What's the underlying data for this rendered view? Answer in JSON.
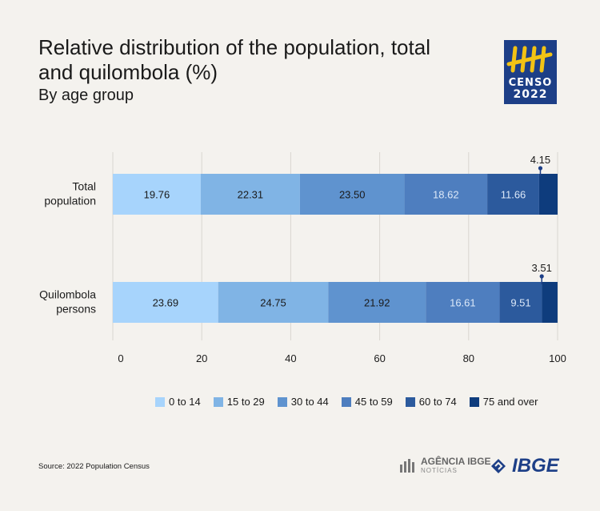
{
  "header": {
    "title": "Relative distribution of the population, total and quilombola (%)",
    "subtitle": "By age group"
  },
  "logo": {
    "line1": "CENSO",
    "line2": "2022",
    "icon": "census-tally-icon"
  },
  "footer": {
    "source": "Source: 2022 Population Census",
    "agencia_main": "AGÊNCIA IBGE",
    "agencia_sub": "NOTÍCIAS",
    "ibge": "IBGE"
  },
  "colors": [
    "#a7d4fc",
    "#80b4e5",
    "#5f93cf",
    "#4e7ebf",
    "#2c5a9d",
    "#0e3c7d"
  ],
  "chart_data": {
    "type": "bar",
    "orientation": "horizontal",
    "stacked": true,
    "categories": [
      "Total\npopulation",
      "Quilombola\npersons"
    ],
    "series": [
      {
        "name": "0 to 14",
        "values": [
          19.76,
          23.69
        ]
      },
      {
        "name": "15 to 29",
        "values": [
          22.31,
          24.75
        ]
      },
      {
        "name": "30 to 44",
        "values": [
          23.5,
          21.92
        ]
      },
      {
        "name": "45 to 59",
        "values": [
          18.62,
          16.61
        ]
      },
      {
        "name": "60 to 74",
        "values": [
          11.66,
          9.51
        ]
      },
      {
        "name": "75 and over",
        "values": [
          4.15,
          3.51
        ]
      }
    ],
    "xlim": [
      0,
      100
    ],
    "xticks": [
      0,
      20,
      40,
      60,
      80,
      100
    ],
    "grid": true,
    "legend": "bottom"
  }
}
